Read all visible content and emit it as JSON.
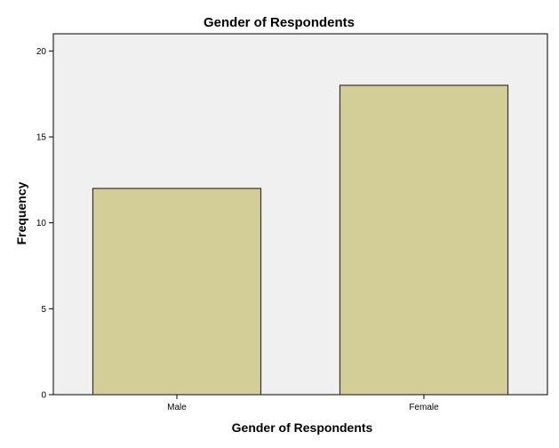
{
  "chart_data": {
    "type": "bar",
    "title": "Gender of Respondents",
    "xlabel": "Gender of Respondents",
    "ylabel": "Frequency",
    "categories": [
      "Male",
      "Female"
    ],
    "values": [
      12,
      18
    ],
    "ylim": [
      0,
      21
    ],
    "yticks": [
      0,
      5,
      10,
      15,
      20
    ],
    "grid": false,
    "colors": {
      "plot_background": "#f0f0f0",
      "bar_fill": "#d3ce98",
      "bar_stroke": "#333333",
      "axis": "#000000"
    }
  }
}
